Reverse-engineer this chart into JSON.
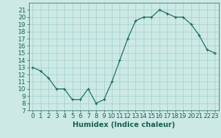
{
  "x": [
    0,
    1,
    2,
    3,
    4,
    5,
    6,
    7,
    8,
    9,
    10,
    11,
    12,
    13,
    14,
    15,
    16,
    17,
    18,
    19,
    20,
    21,
    22,
    23
  ],
  "y": [
    13,
    12.5,
    11.5,
    10,
    10,
    8.5,
    8.5,
    10,
    8.0,
    8.5,
    11,
    14,
    17,
    19.5,
    20,
    20,
    21,
    20.5,
    20,
    20,
    19,
    17.5,
    15.5,
    15
  ],
  "xlabel": "Humidex (Indice chaleur)",
  "ylim": [
    7,
    22
  ],
  "xlim": [
    -0.5,
    23.5
  ],
  "yticks": [
    7,
    8,
    9,
    10,
    11,
    12,
    13,
    14,
    15,
    16,
    17,
    18,
    19,
    20,
    21
  ],
  "xticks": [
    0,
    1,
    2,
    3,
    4,
    5,
    6,
    7,
    8,
    9,
    10,
    11,
    12,
    13,
    14,
    15,
    16,
    17,
    18,
    19,
    20,
    21,
    22,
    23
  ],
  "line_color": "#1a6b5e",
  "bg_color": "#cce9e5",
  "grid_color": "#9dcec9",
  "font_color": "#1a5e52",
  "label_fontsize": 7.5,
  "tick_fontsize": 6.5
}
